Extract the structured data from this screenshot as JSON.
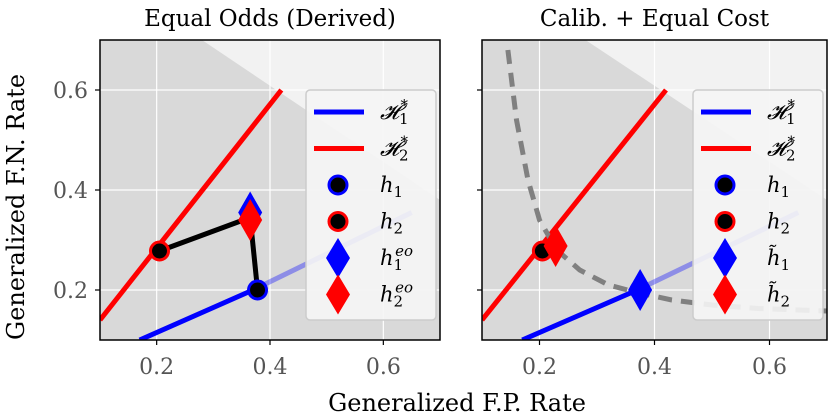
{
  "figure": {
    "xlabel": "Generalized F.P. Rate",
    "ylabel": "Generalized F.N. Rate"
  },
  "colors": {
    "blue": "#0000ff",
    "red": "#ff0000",
    "black": "#000000",
    "gray_dash": "#808080",
    "bg_outer": "#d9d9d9",
    "bg_inner": "#f2f2f2",
    "grid": "#ffffff"
  },
  "chart_data": [
    {
      "type": "line",
      "title": "Equal Odds (Derived)",
      "xlim": [
        0.1,
        0.7
      ],
      "ylim": [
        0.1,
        0.7
      ],
      "xticks": [
        0.2,
        0.4,
        0.6
      ],
      "yticks": [
        0.2,
        0.4,
        0.6
      ],
      "xtick_labels": [
        "0.2",
        "0.4",
        "0.6"
      ],
      "ytick_labels": [
        "0.2",
        "0.4",
        "0.6"
      ],
      "grid": true,
      "legend_position": "right",
      "shaded_boundary": [
        [
          0.28,
          0.7
        ],
        [
          0.7,
          0.38
        ]
      ],
      "series": [
        {
          "name": "𝓗₁*",
          "kind": "line",
          "color": "blue",
          "points": [
            [
              0.17,
              0.1
            ],
            [
              0.37,
              0.2
            ],
            [
              0.65,
              0.355
            ]
          ],
          "faded_after_x": 0.37
        },
        {
          "name": "𝓗₂*",
          "kind": "line",
          "color": "red",
          "points": [
            [
              0.1,
              0.14
            ],
            [
              0.42,
              0.6
            ]
          ]
        },
        {
          "name": "h₁",
          "kind": "point",
          "marker": "circle",
          "color": "blue",
          "points": [
            [
              0.378,
              0.2
            ]
          ]
        },
        {
          "name": "h₂",
          "kind": "point",
          "marker": "circle",
          "color": "red",
          "points": [
            [
              0.205,
              0.278
            ]
          ]
        },
        {
          "name": "h₁ᵉᵒ",
          "kind": "point",
          "marker": "diamond",
          "color": "blue",
          "points": [
            [
              0.365,
              0.355
            ]
          ]
        },
        {
          "name": "h₂ᵉᵒ",
          "kind": "point",
          "marker": "diamond",
          "color": "red",
          "points": [
            [
              0.365,
              0.34
            ]
          ]
        },
        {
          "name": "path",
          "kind": "line",
          "color": "black",
          "points": [
            [
              0.205,
              0.278
            ],
            [
              0.365,
              0.345
            ],
            [
              0.378,
              0.2
            ]
          ]
        }
      ],
      "legend": [
        {
          "label_main": "𝓗",
          "sub": "1",
          "sup": "*",
          "marker": "line",
          "color": "blue"
        },
        {
          "label_main": "𝓗",
          "sub": "2",
          "sup": "*",
          "marker": "line",
          "color": "red"
        },
        {
          "label_main": "h",
          "sub": "1",
          "sup": "",
          "marker": "circle",
          "color": "blue"
        },
        {
          "label_main": "h",
          "sub": "2",
          "sup": "",
          "marker": "circle",
          "color": "red"
        },
        {
          "label_main": "h",
          "sub": "1",
          "sup": "eo",
          "marker": "diamond",
          "color": "blue"
        },
        {
          "label_main": "h",
          "sub": "2",
          "sup": "eo",
          "marker": "diamond",
          "color": "red"
        }
      ]
    },
    {
      "type": "line",
      "title": "Calib. + Equal Cost",
      "xlim": [
        0.1,
        0.7
      ],
      "ylim": [
        0.1,
        0.7
      ],
      "xticks": [
        0.2,
        0.4,
        0.6
      ],
      "yticks": [
        0.2,
        0.4,
        0.6
      ],
      "xtick_labels": [
        "0.2",
        "0.4",
        "0.6"
      ],
      "ytick_labels": [],
      "grid": true,
      "legend_position": "right",
      "shaded_boundary": [
        [
          0.28,
          0.7
        ],
        [
          0.7,
          0.38
        ]
      ],
      "series": [
        {
          "name": "𝓗₁*",
          "kind": "line",
          "color": "blue",
          "points": [
            [
              0.17,
              0.1
            ],
            [
              0.37,
              0.2
            ],
            [
              0.65,
              0.355
            ]
          ],
          "faded_after_x": 0.37
        },
        {
          "name": "𝓗₂*",
          "kind": "line",
          "color": "red",
          "points": [
            [
              0.1,
              0.14
            ],
            [
              0.42,
              0.6
            ]
          ]
        },
        {
          "name": "equal cost",
          "kind": "dashed",
          "color": "gray_dash",
          "points": [
            [
              0.145,
              0.68
            ],
            [
              0.16,
              0.54
            ],
            [
              0.18,
              0.42
            ],
            [
              0.2,
              0.34
            ],
            [
              0.23,
              0.28
            ],
            [
              0.27,
              0.24
            ],
            [
              0.32,
              0.21
            ],
            [
              0.37,
              0.195
            ],
            [
              0.43,
              0.18
            ],
            [
              0.5,
              0.17
            ],
            [
              0.58,
              0.163
            ],
            [
              0.7,
              0.158
            ]
          ]
        },
        {
          "name": "h₁",
          "kind": "point",
          "marker": "circle",
          "color": "blue",
          "points": [
            [
              0.375,
              0.2
            ]
          ]
        },
        {
          "name": "h₂",
          "kind": "point",
          "marker": "circle",
          "color": "red",
          "points": [
            [
              0.205,
              0.278
            ]
          ]
        },
        {
          "name": "h̃₁",
          "kind": "point",
          "marker": "diamond",
          "color": "blue",
          "points": [
            [
              0.375,
              0.2
            ]
          ]
        },
        {
          "name": "h̃₂",
          "kind": "point",
          "marker": "diamond",
          "color": "red",
          "points": [
            [
              0.228,
              0.288
            ]
          ]
        }
      ],
      "legend": [
        {
          "label_main": "𝓗",
          "sub": "1",
          "sup": "*",
          "marker": "line",
          "color": "blue"
        },
        {
          "label_main": "𝓗",
          "sub": "2",
          "sup": "*",
          "marker": "line",
          "color": "red"
        },
        {
          "label_main": "h",
          "sub": "1",
          "sup": "",
          "marker": "circle",
          "color": "blue"
        },
        {
          "label_main": "h",
          "sub": "2",
          "sup": "",
          "marker": "circle",
          "color": "red"
        },
        {
          "label_main": "h̃",
          "sub": "1",
          "sup": "",
          "marker": "diamond",
          "color": "blue"
        },
        {
          "label_main": "h̃",
          "sub": "2",
          "sup": "",
          "marker": "diamond",
          "color": "red"
        }
      ]
    }
  ]
}
